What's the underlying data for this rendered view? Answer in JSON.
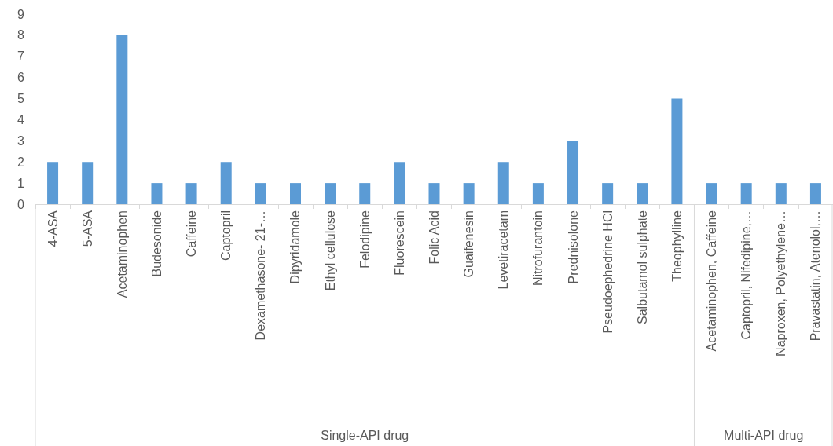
{
  "chart_data": {
    "type": "bar",
    "categories": [
      "4-ASA",
      "5-ASA",
      "Acetaminophen",
      "Budesonide",
      "Caffeine",
      "Captopril",
      "Dexamethasone- 21-…",
      "Dipyridamole",
      "Ethyl cellulose",
      "Felodipine",
      "Fluorescein",
      "Folic Acid",
      "Guaifenesin",
      "Levetiracetam",
      "Nitrofurantoin",
      "Prednisolone",
      "Pseudoephedrine HCl",
      "Salbutamol sulphate",
      "Theophylline",
      "Acetaminophen, Caffeine",
      "Captopril, Nifedipine,…",
      "Naproxen, Polyethylene…",
      "Pravastatin, Atenolol,…"
    ],
    "values": [
      2,
      2,
      8,
      1,
      1,
      2,
      1,
      1,
      1,
      1,
      2,
      1,
      1,
      2,
      1,
      3,
      1,
      1,
      5,
      1,
      1,
      1,
      1
    ],
    "color": "#5b9bd5",
    "ylim": [
      0,
      9
    ],
    "yticks": [
      0,
      1,
      2,
      3,
      4,
      5,
      6,
      7,
      8,
      9
    ],
    "grid": false,
    "annotations": [
      "Single-API drug",
      "Multi-API drug"
    ]
  }
}
